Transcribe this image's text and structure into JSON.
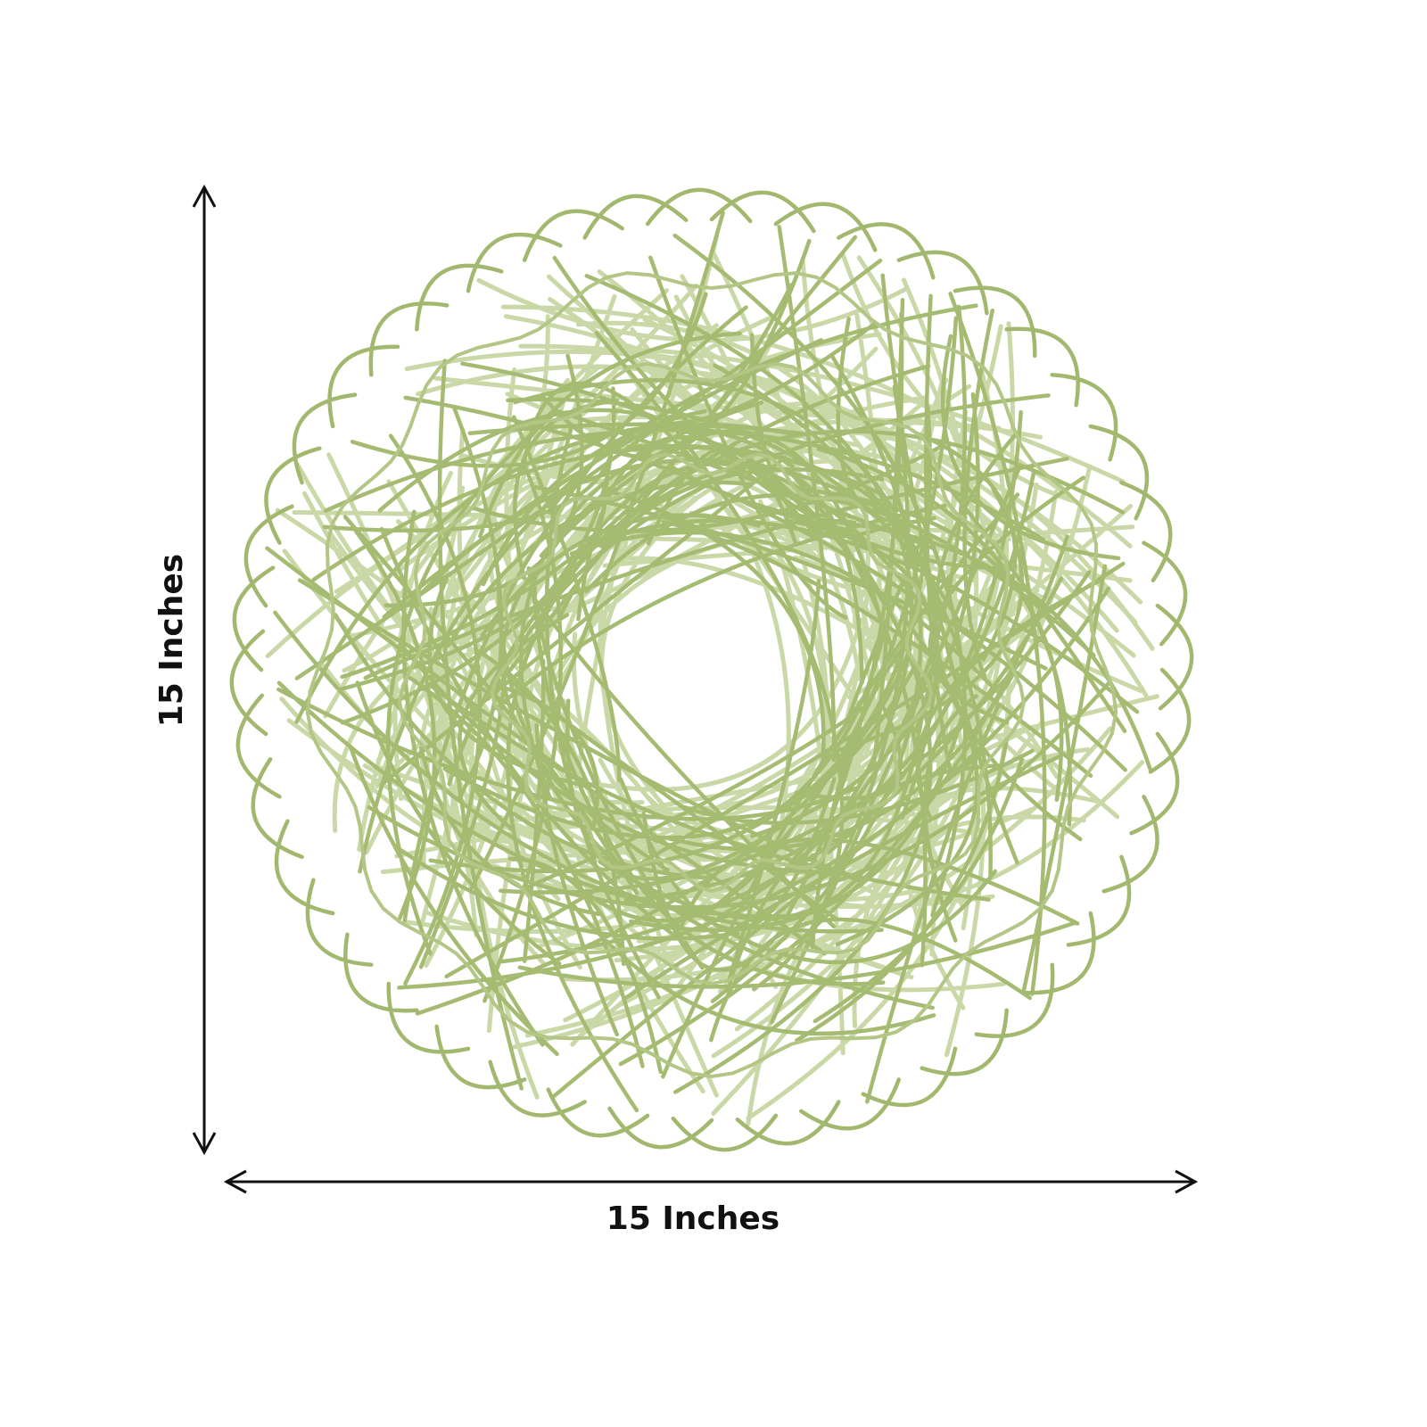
{
  "labels": {
    "height": "15 Inches",
    "width": "15 Inches"
  }
}
